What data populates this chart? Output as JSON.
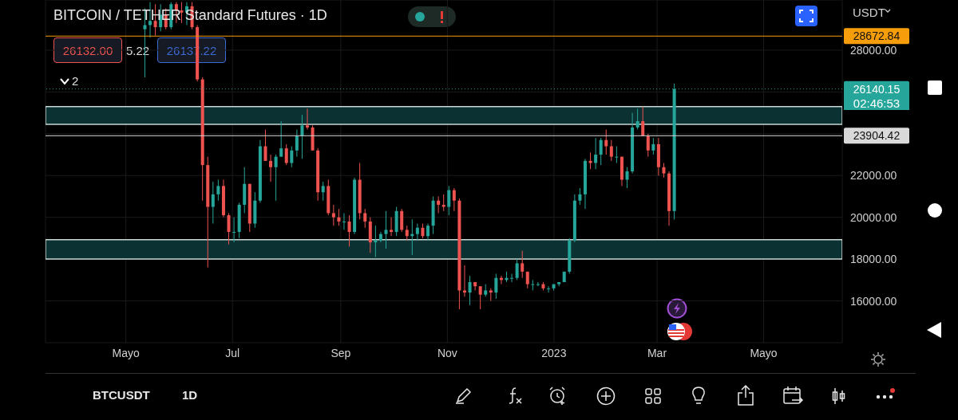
{
  "chart_data": {
    "type": "candlestick",
    "title": "BITCOIN / TETHER Standard Futures · 1D",
    "x": [
      "2022-05-12",
      "2022-05-15",
      "2022-05-18",
      "2022-05-21",
      "2022-05-24",
      "2022-05-27",
      "2022-05-30",
      "2022-06-02",
      "2022-06-05",
      "2022-06-08",
      "2022-06-11",
      "2022-06-14",
      "2022-06-17",
      "2022-06-20",
      "2022-06-23",
      "2022-06-26",
      "2022-06-29",
      "2022-07-02",
      "2022-07-05",
      "2022-07-08",
      "2022-07-11",
      "2022-07-14",
      "2022-07-17",
      "2022-07-20",
      "2022-07-23",
      "2022-07-26",
      "2022-07-29",
      "2022-08-01",
      "2022-08-04",
      "2022-08-07",
      "2022-08-10",
      "2022-08-13",
      "2022-08-16",
      "2022-08-19",
      "2022-08-22",
      "2022-08-25",
      "2022-08-28",
      "2022-08-31",
      "2022-09-03",
      "2022-09-06",
      "2022-09-09",
      "2022-09-12",
      "2022-09-15",
      "2022-09-18",
      "2022-09-21",
      "2022-09-24",
      "2022-09-27",
      "2022-09-30",
      "2022-10-03",
      "2022-10-06",
      "2022-10-09",
      "2022-10-12",
      "2022-10-15",
      "2022-10-18",
      "2022-10-21",
      "2022-10-24",
      "2022-10-27",
      "2022-10-30",
      "2022-11-02",
      "2022-11-05",
      "2022-11-08",
      "2022-11-11",
      "2022-11-14",
      "2022-11-17",
      "2022-11-20",
      "2022-11-23",
      "2022-11-26",
      "2022-11-29",
      "2022-12-02",
      "2022-12-05",
      "2022-12-08",
      "2022-12-11",
      "2022-12-14",
      "2022-12-17",
      "2022-12-20",
      "2022-12-23",
      "2022-12-26",
      "2022-12-29",
      "2023-01-01",
      "2023-01-04",
      "2023-01-07",
      "2023-01-10",
      "2023-01-13",
      "2023-01-16",
      "2023-01-19",
      "2023-01-22",
      "2023-01-25",
      "2023-01-28",
      "2023-01-31",
      "2023-02-03",
      "2023-02-06",
      "2023-02-09",
      "2023-02-12",
      "2023-02-15",
      "2023-02-18",
      "2023-02-21",
      "2023-02-24",
      "2023-02-27",
      "2023-03-02",
      "2023-03-05",
      "2023-03-08",
      "2023-03-11"
    ],
    "ohlc": [
      [
        29000,
        30000,
        26700,
        29200
      ],
      [
        29200,
        30300,
        28600,
        29400
      ],
      [
        29400,
        30200,
        28700,
        29100
      ],
      [
        29100,
        30200,
        28900,
        29700
      ],
      [
        29700,
        30000,
        29000,
        29100
      ],
      [
        29100,
        30300,
        29000,
        30200
      ],
      [
        30200,
        30300,
        29300,
        29900
      ],
      [
        29900,
        30300,
        29300,
        29800
      ],
      [
        29800,
        30300,
        29200,
        30100
      ],
      [
        30100,
        30300,
        29000,
        29100
      ],
      [
        29100,
        29200,
        26500,
        26600
      ],
      [
        26600,
        26700,
        20800,
        22500
      ],
      [
        22500,
        22900,
        17600,
        20500
      ],
      [
        20500,
        21700,
        19700,
        21100
      ],
      [
        21100,
        21800,
        20800,
        21500
      ],
      [
        21500,
        21800,
        20000,
        20100
      ],
      [
        20100,
        20200,
        18700,
        19300
      ],
      [
        19300,
        20000,
        18800,
        19300
      ],
      [
        19300,
        20700,
        19000,
        20600
      ],
      [
        20600,
        22400,
        20200,
        21600
      ],
      [
        21600,
        21600,
        19300,
        19700
      ],
      [
        19700,
        21200,
        19500,
        20800
      ],
      [
        20800,
        23700,
        20700,
        23400
      ],
      [
        23400,
        24200,
        22700,
        22700
      ],
      [
        22700,
        23000,
        21700,
        22400
      ],
      [
        22400,
        23000,
        20800,
        22900
      ],
      [
        22900,
        24600,
        22900,
        23300
      ],
      [
        23300,
        23500,
        22500,
        22600
      ],
      [
        22600,
        23400,
        22400,
        23200
      ],
      [
        23200,
        24200,
        22900,
        23900
      ],
      [
        23900,
        24900,
        22800,
        24400
      ],
      [
        24400,
        25200,
        24200,
        24300
      ],
      [
        24300,
        24400,
        23200,
        23200
      ],
      [
        23200,
        23300,
        20800,
        21200
      ],
      [
        21200,
        21700,
        20800,
        21500
      ],
      [
        21500,
        21800,
        20100,
        20200
      ],
      [
        20200,
        20600,
        19600,
        20000
      ],
      [
        20000,
        20400,
        19600,
        19800
      ],
      [
        19800,
        20200,
        19400,
        19800
      ],
      [
        19800,
        20100,
        18600,
        19300
      ],
      [
        19300,
        21900,
        19200,
        21800
      ],
      [
        21800,
        22600,
        19900,
        20200
      ],
      [
        20200,
        20400,
        19500,
        19800
      ],
      [
        19800,
        20000,
        18300,
        18800
      ],
      [
        18800,
        19600,
        18100,
        18900
      ],
      [
        18900,
        19300,
        18800,
        19200
      ],
      [
        19200,
        20300,
        18500,
        19400
      ],
      [
        19400,
        20000,
        19100,
        19300
      ],
      [
        19300,
        20500,
        19100,
        20300
      ],
      [
        20300,
        20400,
        19300,
        19400
      ],
      [
        19400,
        19600,
        18900,
        19100
      ],
      [
        19100,
        19900,
        18200,
        19200
      ],
      [
        19200,
        19700,
        18900,
        19500
      ],
      [
        19500,
        19700,
        19000,
        19100
      ],
      [
        19100,
        19700,
        18900,
        19600
      ],
      [
        19600,
        21000,
        19200,
        20800
      ],
      [
        20800,
        21000,
        20200,
        20600
      ],
      [
        20600,
        21100,
        20300,
        20500
      ],
      [
        20500,
        21500,
        20100,
        21300
      ],
      [
        21300,
        21400,
        20300,
        20800
      ],
      [
        20800,
        20900,
        15600,
        16500
      ],
      [
        16500,
        17700,
        16200,
        16400
      ],
      [
        16400,
        17200,
        15800,
        16900
      ],
      [
        16900,
        16900,
        16500,
        16700
      ],
      [
        16700,
        16700,
        15600,
        16300
      ],
      [
        16300,
        16800,
        16200,
        16500
      ],
      [
        16500,
        16600,
        16000,
        16400
      ],
      [
        16400,
        17300,
        16100,
        17100
      ],
      [
        17100,
        17200,
        16800,
        17000
      ],
      [
        17000,
        17400,
        16900,
        17100
      ],
      [
        17100,
        17300,
        16900,
        17100
      ],
      [
        17100,
        18000,
        17000,
        17800
      ],
      [
        17800,
        18400,
        17100,
        17400
      ],
      [
        17400,
        17400,
        16600,
        16800
      ],
      [
        16800,
        17000,
        16500,
        16800
      ],
      [
        16800,
        16900,
        16700,
        16800
      ],
      [
        16800,
        16900,
        16500,
        16600
      ],
      [
        16600,
        16700,
        16400,
        16600
      ],
      [
        16600,
        16800,
        16500,
        16800
      ],
      [
        16800,
        16900,
        16700,
        16900
      ],
      [
        16900,
        17400,
        16900,
        17400
      ],
      [
        17400,
        19000,
        17300,
        18900
      ],
      [
        18900,
        21100,
        18800,
        20800
      ],
      [
        20800,
        21400,
        20600,
        21100
      ],
      [
        21100,
        22800,
        20400,
        22700
      ],
      [
        22700,
        23100,
        22300,
        22600
      ],
      [
        22600,
        23800,
        22300,
        23000
      ],
      [
        23000,
        23800,
        22500,
        23700
      ],
      [
        23700,
        24200,
        23000,
        23400
      ],
      [
        23400,
        23700,
        22700,
        22900
      ],
      [
        22900,
        23400,
        22600,
        22900
      ],
      [
        22900,
        22900,
        21500,
        21800
      ],
      [
        21800,
        22400,
        21400,
        22200
      ],
      [
        22200,
        25000,
        22100,
        24300
      ],
      [
        24300,
        25200,
        24200,
        24600
      ],
      [
        24600,
        25300,
        23900,
        23900
      ],
      [
        23900,
        24000,
        22900,
        23200
      ],
      [
        23200,
        23800,
        23000,
        23500
      ],
      [
        23500,
        23800,
        22000,
        22400
      ],
      [
        22400,
        22600,
        21900,
        22100
      ],
      [
        22100,
        22200,
        19600,
        20300
      ],
      [
        20300,
        26400,
        19900,
        26140.15
      ]
    ],
    "xlim": [
      "2022-03-16",
      "2023-06-15"
    ],
    "xticks": [
      {
        "value": "2022-05-01",
        "label": "Mayo"
      },
      {
        "value": "2022-07-01",
        "label": "Jul"
      },
      {
        "value": "2022-09-01",
        "label": "Sep"
      },
      {
        "value": "2022-11-01",
        "label": "Nov"
      },
      {
        "value": "2023-01-01",
        "label": "2023"
      },
      {
        "value": "2023-03-01",
        "label": "Mar"
      },
      {
        "value": "2023-05-01",
        "label": "Mayo"
      }
    ],
    "ylim": [
      14000,
      30400
    ],
    "yticks": [
      {
        "value": 16000,
        "label": "16000.00"
      },
      {
        "value": 18000,
        "label": "18000.00"
      },
      {
        "value": 20000,
        "label": "20000.00"
      },
      {
        "value": 22000,
        "label": "22000.00"
      },
      {
        "value": 24000,
        "label": null
      },
      {
        "value": 26000,
        "label": null
      },
      {
        "value": 28000,
        "label": "28000.00"
      }
    ],
    "grid": true,
    "ref_lines": [
      {
        "axis": "y",
        "value": 28672.84,
        "label": "28672.84",
        "color": "#f59d0b",
        "line_style": "solid"
      },
      {
        "axis": "y",
        "value": 26140.15,
        "label": "26140.15",
        "color": "#26a69a",
        "line_style": "dotted"
      },
      {
        "axis": "y",
        "value": 23904.42,
        "label": "23904.42",
        "color": "#d9d9d9",
        "line_style": "solid"
      }
    ],
    "bands": [
      {
        "axis": "y",
        "from": 24450,
        "to": 25300,
        "color": "#0c3133"
      },
      {
        "axis": "y",
        "from": 18000,
        "to": 18930,
        "color": "#0c3133"
      }
    ],
    "annotations": [
      "26132.00",
      "5.22",
      "26137.22",
      "2",
      "02:46:53",
      "USDT",
      "BTCUSDT",
      "1D"
    ]
  }
}
